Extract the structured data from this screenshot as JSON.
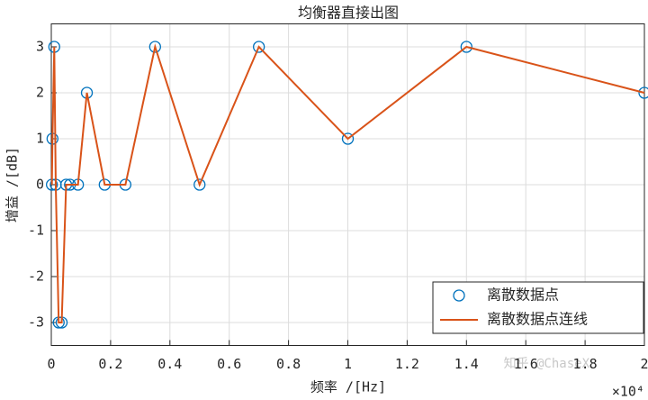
{
  "chart_data": {
    "type": "line",
    "title": "均衡器直接出图",
    "x_label": "频率 /[Hz]",
    "y_label": "增益 /[dB]",
    "x_exponent_label": "×10⁴",
    "watermark": "知乎 @ChaseX",
    "x": [
      20,
      40,
      100,
      150,
      250,
      350,
      500,
      630,
      900,
      1200,
      1800,
      2500,
      3500,
      5000,
      7000,
      10000,
      14000,
      20000
    ],
    "series": [
      {
        "name": "离散数据点",
        "color": "#0072bd",
        "mode": "markers",
        "values": [
          0,
          1,
          3,
          0,
          -3,
          -3,
          0,
          0,
          0,
          2,
          0,
          0,
          3,
          0,
          3,
          1,
          3,
          2
        ]
      },
      {
        "name": "离散数据点连线",
        "color": "#d95319",
        "mode": "line",
        "values": [
          0,
          1,
          3,
          0,
          -3,
          -3,
          0,
          0,
          0,
          2,
          0,
          0,
          3,
          0,
          3,
          1,
          3,
          2
        ]
      }
    ],
    "xlim": [
      0,
      20000
    ],
    "xticks": [
      0,
      {
        "value": 2000,
        "label": "0.2"
      },
      {
        "value": 4000,
        "label": "0.4"
      },
      {
        "value": 6000,
        "label": "0.6"
      },
      {
        "value": 8000,
        "label": "0.8"
      },
      {
        "value": 10000,
        "label": "1"
      },
      {
        "value": 12000,
        "label": "1.2"
      },
      {
        "value": 14000,
        "label": "1.4"
      },
      {
        "value": 16000,
        "label": "1.6"
      },
      {
        "value": 18000,
        "label": "1.8"
      },
      {
        "value": 20000,
        "label": "2"
      }
    ],
    "ylim": [
      -3.5,
      3.5
    ],
    "yticks": [
      -3,
      -2,
      -1,
      0,
      1,
      2,
      3
    ],
    "grid": true,
    "legend": "lower-right"
  }
}
